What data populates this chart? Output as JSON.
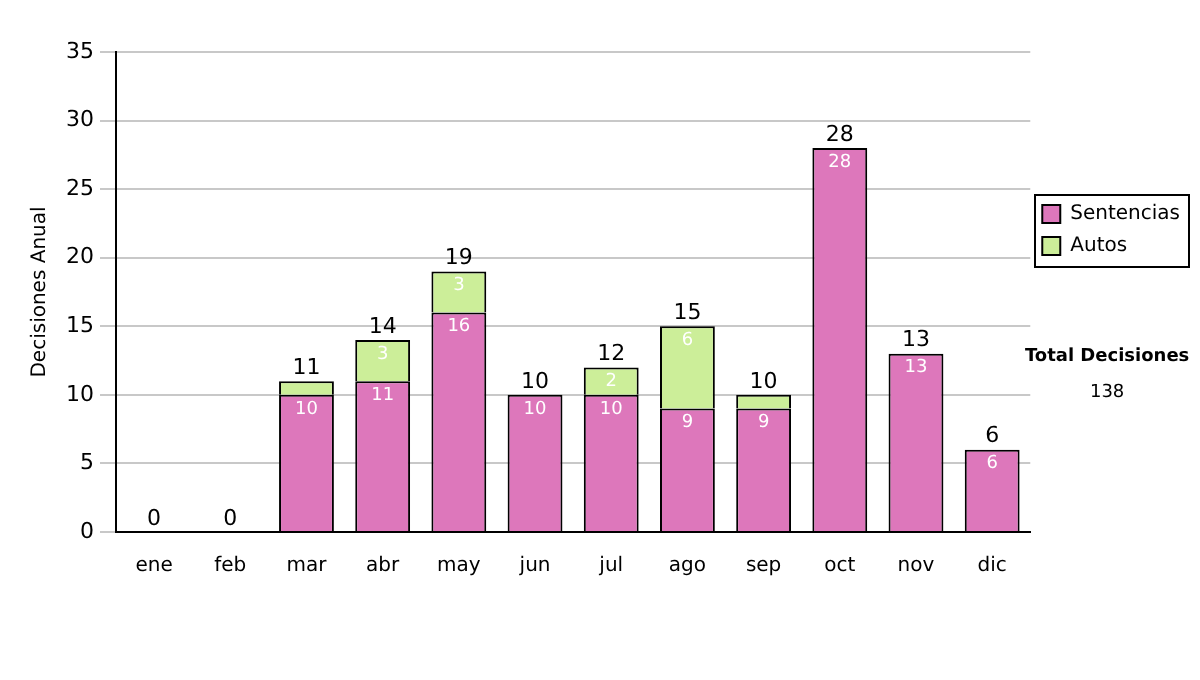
{
  "chart_data": {
    "type": "bar",
    "ylabel": "Decisiones Anual",
    "categories": [
      "ene",
      "feb",
      "mar",
      "abr",
      "may",
      "jun",
      "jul",
      "ago",
      "sep",
      "oct",
      "nov",
      "dic"
    ],
    "stacked": true,
    "series": [
      {
        "name": "Sentencias",
        "color": "#dd77bb",
        "values": [
          0,
          0,
          10,
          11,
          16,
          10,
          10,
          9,
          9,
          28,
          13,
          6
        ],
        "value_labels": [
          null,
          null,
          "10",
          "11",
          "16",
          "10",
          "10",
          "9",
          "9",
          "28",
          "13",
          "6"
        ]
      },
      {
        "name": "Autos",
        "color": "#ccee99",
        "values": [
          0,
          0,
          1,
          3,
          3,
          0,
          2,
          6,
          1,
          0,
          0,
          0
        ],
        "value_labels": [
          null,
          null,
          null,
          "3",
          "3",
          null,
          "2",
          "6",
          null,
          null,
          null,
          null
        ]
      }
    ],
    "totals": [
      "0",
      "0",
      "11",
      "14",
      "19",
      "10",
      "12",
      "15",
      "10",
      "28",
      "13",
      "6"
    ],
    "ylim": [
      0,
      35
    ],
    "yticks": [
      0,
      5,
      10,
      15,
      20,
      25,
      30,
      35
    ],
    "grid": "y",
    "legend": "right",
    "annotations": [
      "Total Decisiones",
      "138"
    ]
  }
}
